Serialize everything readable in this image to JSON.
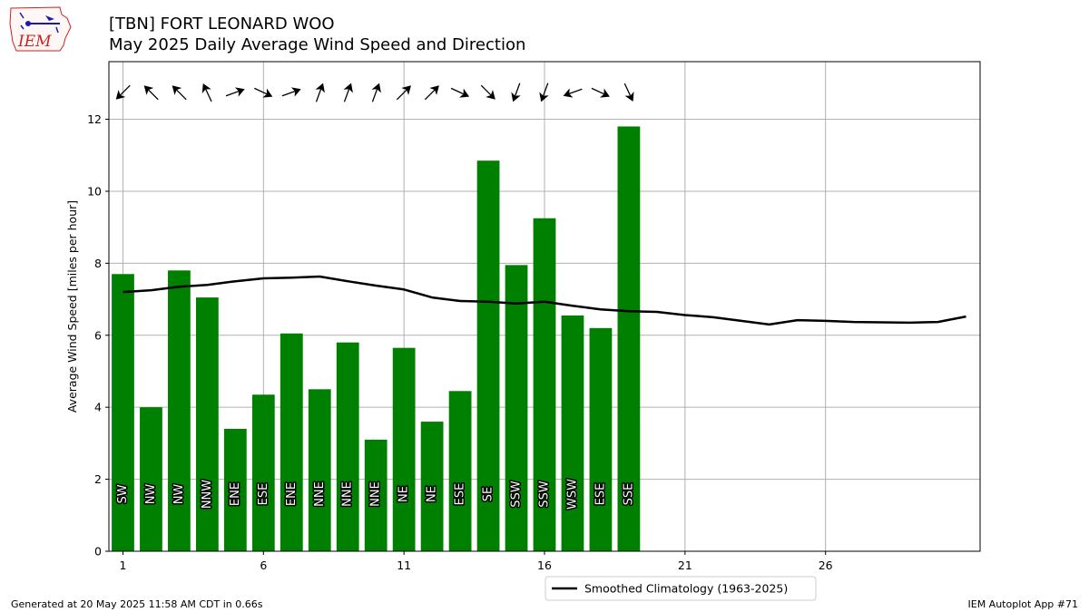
{
  "title_line1": "[TBN] FORT LEONARD WOO",
  "title_line2": "May 2025 Daily Average Wind Speed and Direction",
  "logo_text": "IEM",
  "footer_left": "Generated at 20 May 2025 11:58 AM CDT in 0.66s",
  "footer_right": "IEM Autoplot App #71",
  "legend_label": "Smoothed Climatology (1963-2025)",
  "colors": {
    "bar": "#008000",
    "line": "#000000",
    "grid": "#b0b0b0",
    "logo": "#cc2222",
    "logo_icon": "#1a1ab0"
  },
  "chart_data": {
    "type": "bar",
    "ylabel": "Average Wind Speed [miles per hour]",
    "xlabel": "",
    "xlim": [
      0.5,
      31.5
    ],
    "ylim": [
      0,
      13.6
    ],
    "xticks": [
      1,
      6,
      11,
      16,
      21,
      26
    ],
    "yticks": [
      0,
      2,
      4,
      6,
      8,
      10,
      12
    ],
    "grid": true,
    "legend_position": "bottom-center",
    "days": [
      1,
      2,
      3,
      4,
      5,
      6,
      7,
      8,
      9,
      10,
      11,
      12,
      13,
      14,
      15,
      16,
      17,
      18,
      19
    ],
    "speeds": [
      7.7,
      4.0,
      7.8,
      7.05,
      3.4,
      4.35,
      6.05,
      4.5,
      5.8,
      3.1,
      5.65,
      3.6,
      4.45,
      10.85,
      7.95,
      9.25,
      6.55,
      6.2,
      11.8
    ],
    "direction_labels": [
      "SW",
      "NW",
      "NW",
      "NNW",
      "ENE",
      "ESE",
      "ENE",
      "NNE",
      "NNE",
      "NNE",
      "NE",
      "NE",
      "ESE",
      "SE",
      "SSW",
      "SSW",
      "WSW",
      "ESE",
      "SSE"
    ],
    "arrow_angles_deg": [
      225,
      315,
      315,
      335,
      70,
      115,
      70,
      20,
      20,
      20,
      45,
      45,
      115,
      135,
      200,
      200,
      250,
      115,
      155
    ],
    "climatology": {
      "name": "Smoothed Climatology (1963-2025)",
      "x": [
        1,
        2,
        3,
        4,
        5,
        6,
        7,
        8,
        9,
        10,
        11,
        12,
        13,
        14,
        15,
        16,
        17,
        18,
        19,
        20,
        21,
        22,
        23,
        24,
        25,
        26,
        27,
        28,
        29,
        30,
        31
      ],
      "y": [
        7.2,
        7.25,
        7.35,
        7.4,
        7.5,
        7.58,
        7.6,
        7.63,
        7.5,
        7.38,
        7.27,
        7.05,
        6.95,
        6.93,
        6.88,
        6.93,
        6.82,
        6.72,
        6.67,
        6.65,
        6.56,
        6.5,
        6.4,
        6.3,
        6.42,
        6.4,
        6.37,
        6.36,
        6.35,
        6.37,
        6.52
      ]
    }
  }
}
